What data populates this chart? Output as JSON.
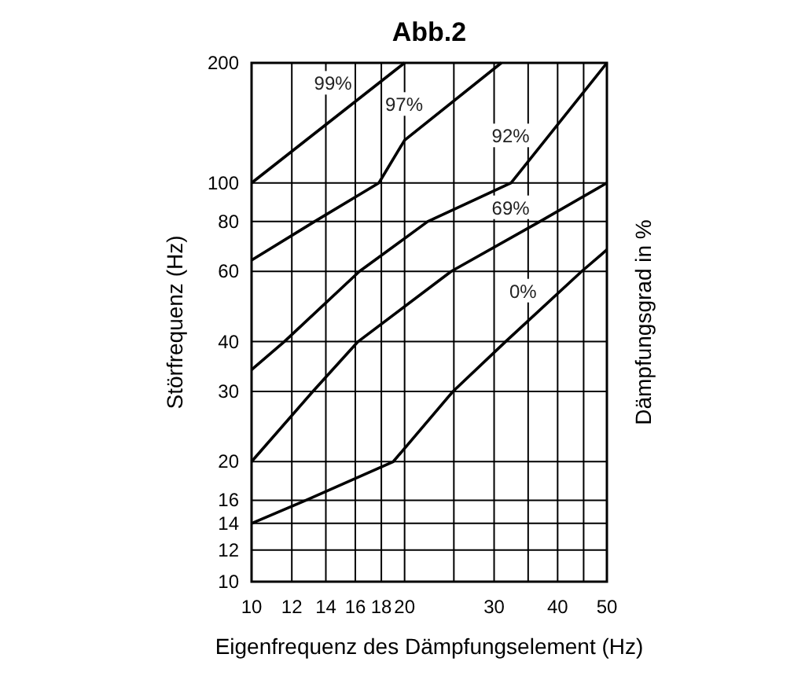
{
  "chart_data": {
    "type": "line",
    "title": "Abb.2",
    "xlabel": "Eigenfrequenz des Dämpfungselement (Hz)",
    "ylabel": "Störfrequenz (Hz)",
    "y2label": "Dämpfungsgrad in %",
    "log": "xy",
    "grid": true,
    "legend": false,
    "marker": "none",
    "line_style": "solid",
    "xlim": [
      10,
      50
    ],
    "ylim": [
      10,
      200
    ],
    "xticks": [
      10,
      12,
      14,
      16,
      18,
      20,
      {
        "value": 25,
        "label": null
      },
      30,
      {
        "value": 35,
        "label": null
      },
      40,
      {
        "value": 45,
        "label": null
      },
      50
    ],
    "yticks": [
      10,
      12,
      14,
      16,
      20,
      30,
      40,
      60,
      80,
      100,
      200
    ],
    "series": [
      {
        "name": "99%",
        "color": "#000000",
        "x": [
          10,
          20
        ],
        "values": [
          100,
          200
        ]
      },
      {
        "name": "97%",
        "color": "#000000",
        "x": [
          10,
          13.3,
          17.8,
          20,
          31
        ],
        "values": [
          64,
          80,
          100,
          128,
          200
        ]
      },
      {
        "name": "92%",
        "color": "#000000",
        "x": [
          10,
          11.6,
          16.3,
          22.2,
          32.4,
          50
        ],
        "values": [
          34,
          40,
          60,
          80,
          100,
          200
        ]
      },
      {
        "name": "69%",
        "color": "#000000",
        "x": [
          10,
          13.2,
          16.2,
          24.7,
          36.9,
          50
        ],
        "values": [
          20,
          30,
          40,
          60,
          80,
          100
        ]
      },
      {
        "name": "0%",
        "color": "#000000",
        "x": [
          10,
          12.8,
          19,
          24.9,
          31.6,
          44.6,
          50
        ],
        "values": [
          14,
          16,
          20,
          30,
          40,
          60,
          68
        ]
      }
    ]
  }
}
